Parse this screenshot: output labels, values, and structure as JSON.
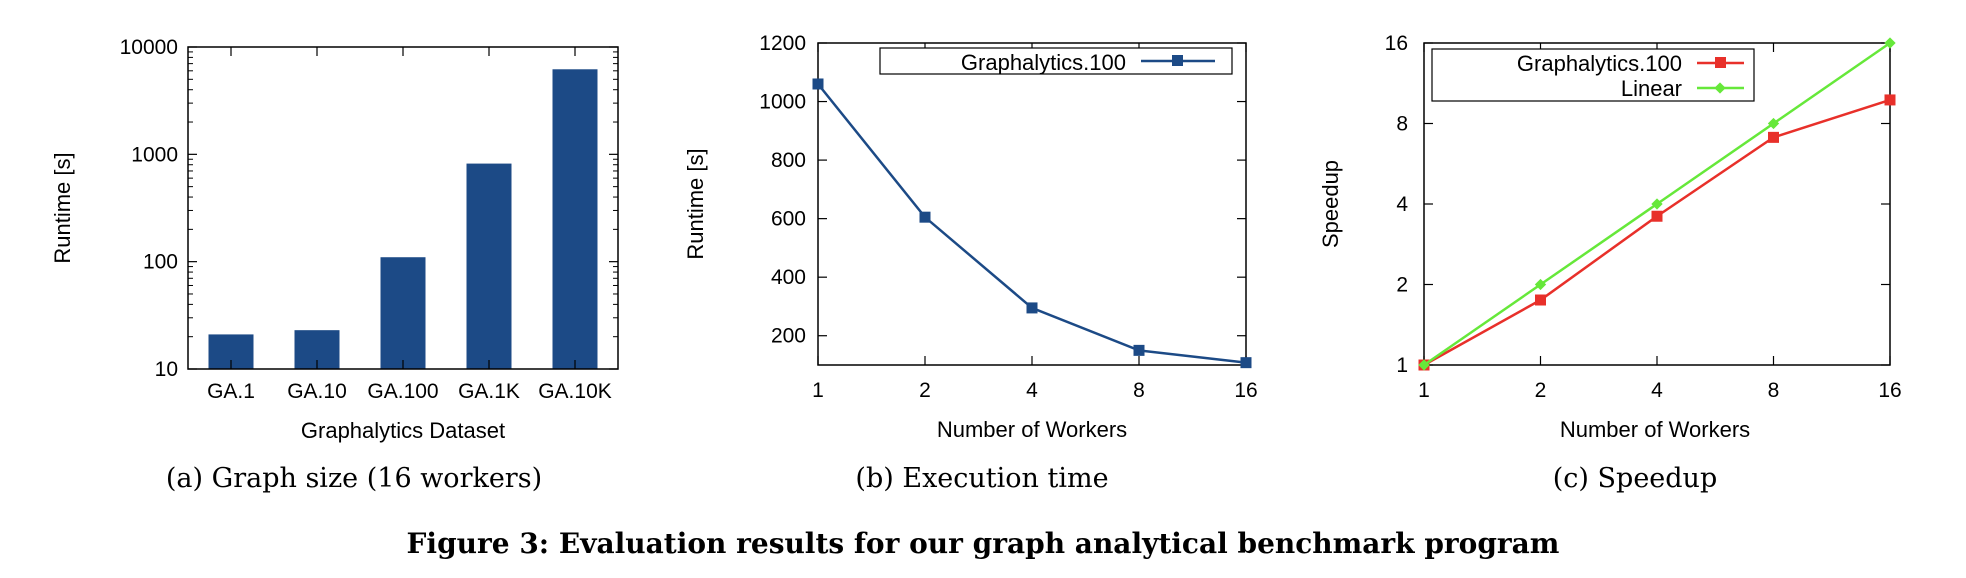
{
  "figure_caption": "Figure 3: Evaluation results for our graph analytical benchmark program",
  "chart_data": [
    {
      "type": "bar",
      "caption": "(a) Graph size (16 workers)",
      "xlabel": "Graphalytics Dataset",
      "ylabel": "Runtime [s]",
      "yscale": "log",
      "ylim": [
        10,
        10000
      ],
      "yticks": [
        10,
        100,
        1000,
        10000
      ],
      "ytick_labels": [
        "10",
        "100",
        "1000",
        "10000"
      ],
      "categories": [
        "GA.1",
        "GA.10",
        "GA.100",
        "GA.1K",
        "GA.10K"
      ],
      "values": [
        21,
        23,
        110,
        820,
        6200
      ],
      "color": "#1c4a86",
      "grid": false
    },
    {
      "type": "line",
      "caption": "(b) Execution time",
      "xlabel": "Number of Workers",
      "ylabel": "Runtime [s]",
      "xscale": "log2",
      "x": [
        1,
        2,
        4,
        8,
        16
      ],
      "xtick_labels": [
        "1",
        "2",
        "4",
        "8",
        "16"
      ],
      "ylim": [
        100,
        1200
      ],
      "yticks": [
        200,
        400,
        600,
        800,
        1000,
        1200
      ],
      "ytick_labels": [
        "200",
        "400",
        "600",
        "800",
        "1000",
        "1200"
      ],
      "legend_position": "top-right",
      "grid": false,
      "series": [
        {
          "name": "Graphalytics.100",
          "values": [
            1060,
            605,
            295,
            150,
            108
          ],
          "color": "#1c4a86",
          "marker": "square"
        }
      ]
    },
    {
      "type": "line",
      "caption": "(c) Speedup",
      "xlabel": "Number of Workers",
      "ylabel": "Speedup",
      "xscale": "log2",
      "yscale": "log2",
      "x": [
        1,
        2,
        4,
        8,
        16
      ],
      "xtick_labels": [
        "1",
        "2",
        "4",
        "8",
        "16"
      ],
      "ylim": [
        1,
        16
      ],
      "yticks": [
        1,
        2,
        4,
        8,
        16
      ],
      "ytick_labels": [
        "1",
        "2",
        "4",
        "8",
        "16"
      ],
      "legend_position": "top-left",
      "grid": false,
      "series": [
        {
          "name": "Graphalytics.100",
          "values": [
            1,
            1.75,
            3.6,
            7.1,
            9.8
          ],
          "color": "#e8302a",
          "marker": "square"
        },
        {
          "name": "Linear",
          "values": [
            1,
            2,
            4,
            8,
            16
          ],
          "color": "#66e83a",
          "marker": "diamond"
        }
      ]
    }
  ]
}
